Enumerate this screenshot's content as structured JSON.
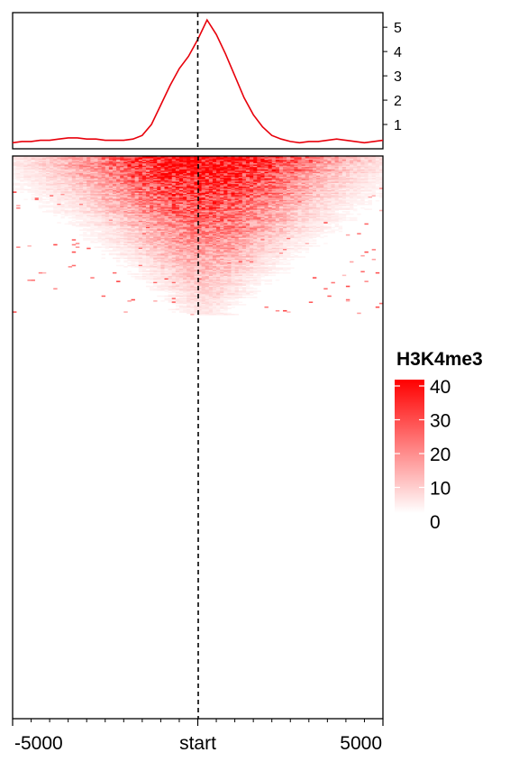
{
  "chart_data": [
    {
      "type": "line",
      "panel": "profile",
      "x": [
        -5000,
        -4750,
        -4500,
        -4250,
        -4000,
        -3750,
        -3500,
        -3250,
        -3000,
        -2750,
        -2500,
        -2250,
        -2000,
        -1750,
        -1500,
        -1250,
        -1000,
        -750,
        -500,
        -250,
        0,
        250,
        500,
        750,
        1000,
        1250,
        1500,
        1750,
        2000,
        2250,
        2500,
        2750,
        3000,
        3250,
        3500,
        3750,
        4000,
        4250,
        4500,
        4750,
        5000
      ],
      "series": [
        {
          "values": [
            0.25,
            0.3,
            0.3,
            0.35,
            0.35,
            0.4,
            0.45,
            0.45,
            0.4,
            0.4,
            0.35,
            0.35,
            0.35,
            0.4,
            0.55,
            1.0,
            1.8,
            2.6,
            3.3,
            3.8,
            4.5,
            5.3,
            4.7,
            3.9,
            3.0,
            2.1,
            1.4,
            0.9,
            0.55,
            0.4,
            0.3,
            0.25,
            0.3,
            0.3,
            0.35,
            0.4,
            0.35,
            0.3,
            0.25,
            0.3,
            0.35
          ],
          "color": "#e8000b"
        }
      ],
      "yticks": [
        "1",
        "2",
        "3",
        "4",
        "5"
      ],
      "ylim": [
        0,
        5.6
      ],
      "xlim": [
        -5000,
        5000
      ],
      "reference_line": {
        "x": 0,
        "style": "dashed"
      },
      "grid": false
    },
    {
      "type": "heatmap",
      "panel": "heatmap",
      "xlim": [
        -5000,
        5000
      ],
      "xticks": [
        "-5000",
        "start",
        "5000"
      ],
      "x_minor_tick_count": 21,
      "rows": 460,
      "rows_with_signal": 130,
      "reference_line": {
        "x": 0,
        "style": "dashed"
      },
      "color_scale": {
        "title": "H3K4me3",
        "min": 0,
        "max": 40,
        "ticks": [
          "40",
          "30",
          "20",
          "10",
          "0"
        ],
        "low_color": "#ffffff",
        "high_color": "#ff0000"
      }
    }
  ]
}
